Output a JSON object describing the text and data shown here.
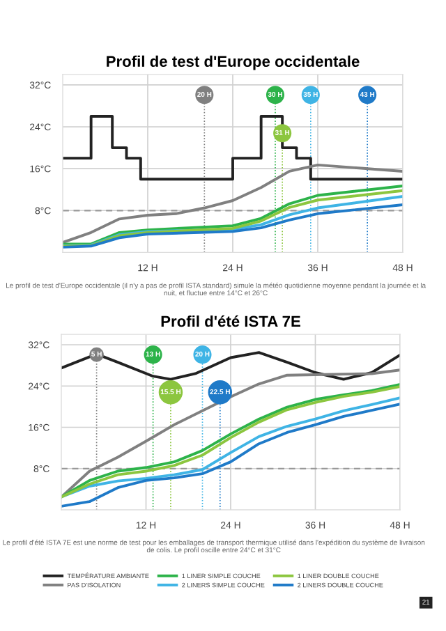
{
  "chart_data": [
    {
      "type": "line",
      "title": "Profil de test d'Europe occidentale",
      "xlim": [
        0,
        48
      ],
      "ylim": [
        0,
        34
      ],
      "xticks": [
        {
          "value": 12,
          "label": "12 H"
        },
        {
          "value": 24,
          "label": "24 H"
        },
        {
          "value": 36,
          "label": "36 H"
        },
        {
          "value": 48,
          "label": "48 H"
        }
      ],
      "yticks": [
        {
          "value": 8,
          "label": "8°C"
        },
        {
          "value": 16,
          "label": "16°C"
        },
        {
          "value": 24,
          "label": "24°C"
        },
        {
          "value": 32,
          "label": "32°C"
        }
      ],
      "grid": true,
      "marker": "none",
      "line_style": "solid",
      "series": [
        {
          "type": "step",
          "color": "#222222",
          "x": [
            0,
            4,
            7,
            9,
            11,
            24,
            28,
            31,
            33,
            35,
            48
          ],
          "values": [
            18,
            26,
            20,
            18,
            14,
            18,
            26,
            20,
            18,
            14,
            14
          ]
        },
        {
          "color": "#808080",
          "x": [
            0,
            4,
            8,
            12,
            16,
            20,
            24,
            28,
            32,
            36,
            48
          ],
          "values": [
            1.9,
            3.8,
            6.4,
            7.1,
            7.4,
            8.5,
            9.9,
            12.4,
            15.5,
            16.7,
            15.5
          ]
        },
        {
          "color": "#2db34a",
          "x": [
            0,
            4,
            8,
            12,
            24,
            28,
            32,
            36,
            48
          ],
          "values": [
            1.6,
            1.6,
            3.8,
            4.3,
            5.1,
            6.5,
            9.3,
            10.9,
            12.7
          ]
        },
        {
          "color": "#3fb4e5",
          "x": [
            0,
            4,
            8,
            12,
            24,
            28,
            32,
            36,
            48
          ],
          "values": [
            1.3,
            1.4,
            3.4,
            4.0,
            4.4,
            5.3,
            7.2,
            8.5,
            10.7
          ]
        },
        {
          "color": "#8cc63f",
          "x": [
            0,
            4,
            8,
            12,
            24,
            28,
            32,
            36,
            48
          ],
          "values": [
            1.2,
            1.3,
            3.2,
            3.8,
            4.6,
            6.0,
            8.6,
            10.0,
            11.8
          ]
        },
        {
          "color": "#1f7ac8",
          "x": [
            0,
            4,
            8,
            12,
            24,
            28,
            32,
            36,
            48
          ],
          "values": [
            1.0,
            1.2,
            2.8,
            3.5,
            4.0,
            4.7,
            6.2,
            7.4,
            9.1
          ]
        }
      ],
      "ref_lines": [
        {
          "axis": "y",
          "value": 8,
          "color": "#999999",
          "line_style": "dashed"
        },
        {
          "axis": "x",
          "value": 20,
          "label": "20 H",
          "color": "#808080",
          "line_style": "dotted"
        },
        {
          "axis": "x",
          "value": 30,
          "label": "30 H",
          "color": "#2db34a",
          "line_style": "dotted"
        },
        {
          "axis": "x",
          "value": 31,
          "label": "31 H",
          "color": "#8cc63f",
          "line_style": "dotted"
        },
        {
          "axis": "x",
          "value": 35,
          "label": "35 H",
          "color": "#3fb4e5",
          "line_style": "dotted"
        },
        {
          "axis": "x",
          "value": 43,
          "label": "43 H",
          "color": "#1f7ac8",
          "line_style": "dotted"
        }
      ],
      "annotations": [
        "Le profil de test d'Europe occidentale (il n'y a pas de profil ISTA standard) simule la météo quotidienne moyenne pendant la journée et la nuit, et fluctue entre 14°C et 26°C"
      ]
    },
    {
      "type": "line",
      "title": "Profil d'été ISTA 7E",
      "xlim": [
        0,
        48
      ],
      "ylim": [
        0,
        34
      ],
      "xticks": [
        {
          "value": 12,
          "label": "12 H"
        },
        {
          "value": 24,
          "label": "24 H"
        },
        {
          "value": 36,
          "label": "36 H"
        },
        {
          "value": 48,
          "label": "48 H"
        }
      ],
      "yticks": [
        {
          "value": 8,
          "label": "8°C"
        },
        {
          "value": 16,
          "label": "16°C"
        },
        {
          "value": 24,
          "label": "24°C"
        },
        {
          "value": 32,
          "label": "32°C"
        }
      ],
      "grid": true,
      "marker": "none",
      "line_style": "solid",
      "legend": "bottom",
      "series": [
        {
          "name": "TEMPÉRATURE AMBIANTE",
          "color": "#222222",
          "x": [
            0,
            5,
            8,
            13,
            15.5,
            19,
            24,
            28,
            32,
            36,
            40,
            44,
            48
          ],
          "values": [
            27.5,
            30.2,
            28.6,
            25.9,
            25.3,
            26.4,
            29.5,
            30.5,
            28.6,
            26.6,
            25.3,
            26.6,
            30
          ]
        },
        {
          "name": "PAS D'ISOLATION",
          "color": "#808080",
          "x": [
            0,
            4,
            8,
            12,
            16,
            20,
            24,
            28,
            32,
            36,
            44,
            48
          ],
          "values": [
            2.5,
            7.5,
            10.2,
            13.3,
            16.5,
            19.2,
            21.9,
            24.4,
            26.1,
            26.2,
            26.4,
            27.1
          ]
        },
        {
          "name": "1 LINER SIMPLE COUCHE",
          "color": "#2db34a",
          "x": [
            0,
            4,
            8,
            12,
            16,
            20,
            24,
            28,
            32,
            36,
            40,
            44,
            48
          ],
          "values": [
            2.5,
            5.7,
            7.5,
            8.2,
            9.3,
            11.5,
            14.7,
            17.6,
            19.9,
            21.4,
            22.3,
            23.1,
            24.3
          ]
        },
        {
          "name": "2 LINERS SIMPLE COUCHE",
          "color": "#3fb4e5",
          "x": [
            0,
            4,
            8,
            12,
            16,
            20,
            24,
            28,
            32,
            36,
            40,
            44,
            48
          ],
          "values": [
            2.5,
            4.6,
            5.6,
            6.1,
            6.8,
            7.8,
            11.1,
            14.2,
            16.2,
            17.6,
            19.2,
            20.4,
            21.7
          ]
        },
        {
          "name": "1 LINER DOUBLE COUCHE",
          "color": "#8cc63f",
          "x": [
            0,
            4,
            8,
            12,
            16,
            20,
            24,
            28,
            32,
            36,
            40,
            44,
            48
          ],
          "values": [
            2.5,
            5.0,
            6.8,
            7.5,
            8.6,
            10.6,
            14.0,
            17.0,
            19.4,
            20.8,
            22.0,
            22.8,
            23.9
          ]
        },
        {
          "name": "2 LINERS DOUBLE COUCHE",
          "color": "#1f7ac8",
          "x": [
            0,
            4,
            8,
            12,
            16,
            20,
            24,
            28,
            32,
            36,
            40,
            44,
            48
          ],
          "values": [
            0.7,
            1.6,
            4.3,
            5.7,
            6.2,
            7.0,
            9.3,
            12.8,
            15.0,
            16.5,
            18.1,
            19.3,
            20.5
          ]
        }
      ],
      "ref_lines": [
        {
          "axis": "y",
          "value": 8,
          "color": "#999999",
          "line_style": "dashed"
        },
        {
          "axis": "x",
          "value": 5,
          "label": "5 H",
          "color": "#808080",
          "line_style": "dotted"
        },
        {
          "axis": "x",
          "value": 13,
          "label": "13 H",
          "color": "#2db34a",
          "line_style": "dotted"
        },
        {
          "axis": "x",
          "value": 15.5,
          "label": "15.5 H",
          "color": "#8cc63f",
          "line_style": "dotted"
        },
        {
          "axis": "x",
          "value": 20,
          "label": "20 H",
          "color": "#3fb4e5",
          "line_style": "dotted"
        },
        {
          "axis": "x",
          "value": 22.5,
          "label": "22.5 H",
          "color": "#1f7ac8",
          "line_style": "dotted"
        }
      ],
      "annotations": [
        "Le profil d'été ISTA 7E est une norme de test pour les emballages de transport thermique utilisé dans l'expédition du système de livraison de colis. Le profil oscille entre 24°C et 31°C",
        "21"
      ]
    }
  ]
}
